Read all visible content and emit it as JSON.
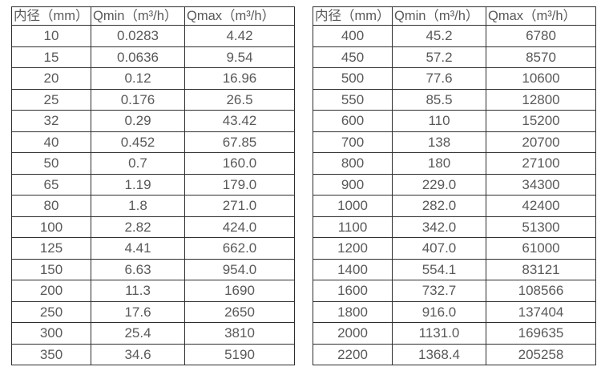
{
  "styles": {
    "background": "#ffffff",
    "text_color": "#595959",
    "border_color": "#2e2e2e"
  },
  "tables": [
    {
      "name": "flow-table-small-diameters",
      "headers": [
        "内径（mm）",
        "Qmin（m³/h）",
        "Qmax（m³/h）"
      ],
      "rows": [
        [
          "10",
          "0.0283",
          "4.42"
        ],
        [
          "15",
          "0.0636",
          "9.54"
        ],
        [
          "20",
          "0.12",
          "16.96"
        ],
        [
          "25",
          "0.176",
          "26.5"
        ],
        [
          "32",
          "0.29",
          "43.42"
        ],
        [
          "40",
          "0.452",
          "67.85"
        ],
        [
          "50",
          "0.7",
          "160.0"
        ],
        [
          "65",
          "1.19",
          "179.0"
        ],
        [
          "80",
          "1.8",
          "271.0"
        ],
        [
          "100",
          "2.82",
          "424.0"
        ],
        [
          "125",
          "4.41",
          "662.0"
        ],
        [
          "150",
          "6.63",
          "954.0"
        ],
        [
          "200",
          "11.3",
          "1690"
        ],
        [
          "250",
          "17.6",
          "2650"
        ],
        [
          "300",
          "25.4",
          "3810"
        ],
        [
          "350",
          "34.6",
          "5190"
        ]
      ]
    },
    {
      "name": "flow-table-large-diameters",
      "headers": [
        "内径（mm）",
        "Qmin（m³/h）",
        "Qmax（m³/h）"
      ],
      "rows": [
        [
          "400",
          "45.2",
          "6780"
        ],
        [
          "450",
          "57.2",
          "8570"
        ],
        [
          "500",
          "77.6",
          "10600"
        ],
        [
          "550",
          "85.5",
          "12800"
        ],
        [
          "600",
          "110",
          "15200"
        ],
        [
          "700",
          "138",
          "20700"
        ],
        [
          "800",
          "180",
          "27100"
        ],
        [
          "900",
          "229.0",
          "34300"
        ],
        [
          "1000",
          "282.0",
          "42400"
        ],
        [
          "1100",
          "342.0",
          "51300"
        ],
        [
          "1200",
          "407.0",
          "61000"
        ],
        [
          "1400",
          "554.1",
          "83121"
        ],
        [
          "1600",
          "732.7",
          "108566"
        ],
        [
          "1800",
          "916.0",
          "137404"
        ],
        [
          "2000",
          "1131.0",
          "169635"
        ],
        [
          "2200",
          "1368.4",
          "205258"
        ]
      ]
    }
  ]
}
